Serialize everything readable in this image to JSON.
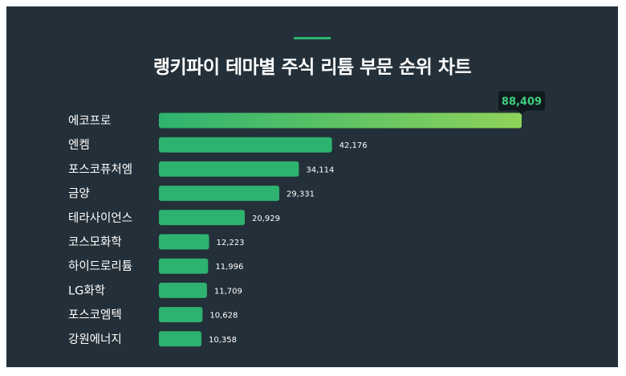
{
  "chart_data": {
    "type": "bar",
    "orientation": "horizontal",
    "title": "랭키파이 테마별 주식 리튬 부문 순위 차트",
    "categories": [
      "에코프로",
      "엔켐",
      "포스코퓨처엠",
      "금양",
      "테라사이언스",
      "코스모화학",
      "하이드로리튬",
      "LG화학",
      "포스코엠텍",
      "강원에너지"
    ],
    "values": [
      88409,
      42176,
      34114,
      29331,
      20929,
      12223,
      11996,
      11709,
      10628,
      10358
    ],
    "value_labels": [
      "88,409",
      "42,176",
      "34,114",
      "29,331",
      "20,929",
      "12,223",
      "11,996",
      "11,709",
      "10,628",
      "10,358"
    ],
    "xlim": [
      0,
      88409
    ],
    "grid": false,
    "legend": "none"
  },
  "colors": {
    "background": "#243039",
    "bar": "#2db36f",
    "bar_top_gradient_end": "#8fd35a",
    "callout_bg": "#101a1e",
    "callout_text": "#3ecf7f",
    "accent": "#2db36f"
  }
}
